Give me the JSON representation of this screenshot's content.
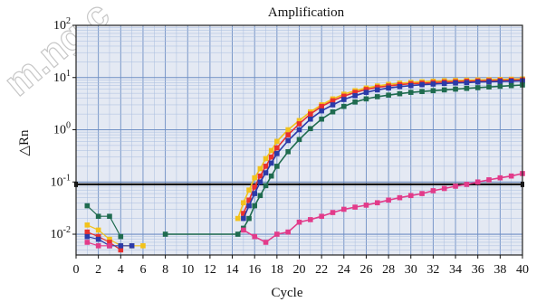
{
  "chart_data": {
    "type": "line",
    "title": "Amplification",
    "xlabel": "Cycle",
    "ylabel": "△Rn",
    "y_scale": "log",
    "xlim": [
      0,
      40
    ],
    "ylim": [
      0.004,
      100
    ],
    "grid": true,
    "x_ticks": [
      "0",
      "2",
      "4",
      "6",
      "8",
      "10",
      "12",
      "14",
      "16",
      "18",
      "20",
      "22",
      "24",
      "26",
      "28",
      "30",
      "32",
      "34",
      "36",
      "38",
      "40"
    ],
    "y_ticks": [
      {
        "value": 100,
        "base": "10",
        "exp": "2"
      },
      {
        "value": 10,
        "base": "10",
        "exp": "1"
      },
      {
        "value": 1,
        "base": "10",
        "exp": "0"
      },
      {
        "value": 0.1,
        "base": "10",
        "exp": "-1"
      },
      {
        "value": 0.01,
        "base": "10",
        "exp": "-2"
      }
    ],
    "threshold": 0.09,
    "watermark": "m.ng.c",
    "colors": {
      "background": "#e4e9f3",
      "grid_major": "#6f8fc4",
      "grid_minor": "#a9bddf",
      "frame": "#222222"
    },
    "series": [
      {
        "color": "#f2c21b",
        "marker": "square",
        "early": [
          [
            1,
            0.015
          ],
          [
            2,
            0.012
          ],
          [
            3,
            0.008
          ],
          [
            4,
            0.006
          ],
          [
            5,
            0.006
          ],
          [
            6,
            0.006
          ]
        ],
        "points": [
          [
            14.5,
            0.02
          ],
          [
            15,
            0.04
          ],
          [
            15.5,
            0.07
          ],
          [
            16,
            0.12
          ],
          [
            16.5,
            0.18
          ],
          [
            17,
            0.28
          ],
          [
            17.5,
            0.4
          ],
          [
            18,
            0.6
          ],
          [
            19,
            1.0
          ],
          [
            20,
            1.5
          ],
          [
            21,
            2.2
          ],
          [
            22,
            3.0
          ],
          [
            23,
            3.9
          ],
          [
            24,
            4.8
          ],
          [
            25,
            5.6
          ],
          [
            26,
            6.3
          ],
          [
            27,
            6.9
          ],
          [
            28,
            7.4
          ],
          [
            29,
            7.8
          ],
          [
            30,
            8.1
          ],
          [
            31,
            8.3
          ],
          [
            32,
            8.5
          ],
          [
            33,
            8.7
          ],
          [
            34,
            8.8
          ],
          [
            35,
            8.9
          ],
          [
            36,
            9.0
          ],
          [
            37,
            9.1
          ],
          [
            38,
            9.2
          ],
          [
            39,
            9.3
          ],
          [
            40,
            9.4
          ]
        ]
      },
      {
        "color": "#e8302f",
        "marker": "square",
        "early": [
          [
            1,
            0.011
          ],
          [
            2,
            0.009
          ],
          [
            3,
            0.007
          ],
          [
            4,
            0.005
          ]
        ],
        "points": [
          [
            15,
            0.025
          ],
          [
            15.5,
            0.045
          ],
          [
            16,
            0.08
          ],
          [
            16.5,
            0.13
          ],
          [
            17,
            0.2
          ],
          [
            17.5,
            0.3
          ],
          [
            18,
            0.45
          ],
          [
            19,
            0.8
          ],
          [
            20,
            1.3
          ],
          [
            21,
            2.0
          ],
          [
            22,
            2.8
          ],
          [
            23,
            3.6
          ],
          [
            24,
            4.4
          ],
          [
            25,
            5.2
          ],
          [
            26,
            5.9
          ],
          [
            27,
            6.5
          ],
          [
            28,
            6.9
          ],
          [
            29,
            7.3
          ],
          [
            30,
            7.6
          ],
          [
            31,
            7.8
          ],
          [
            32,
            8.0
          ],
          [
            33,
            8.2
          ],
          [
            34,
            8.3
          ],
          [
            35,
            8.5
          ],
          [
            36,
            8.6
          ],
          [
            37,
            8.7
          ],
          [
            38,
            8.8
          ],
          [
            39,
            8.9
          ],
          [
            40,
            9.0
          ]
        ]
      },
      {
        "color": "#2b3aa8",
        "marker": "square",
        "early": [
          [
            1,
            0.009
          ],
          [
            2,
            0.008
          ],
          [
            3,
            0.006
          ],
          [
            4,
            0.006
          ],
          [
            5,
            0.006
          ]
        ],
        "points": [
          [
            15,
            0.02
          ],
          [
            15.5,
            0.035
          ],
          [
            16,
            0.06
          ],
          [
            16.5,
            0.1
          ],
          [
            17,
            0.15
          ],
          [
            17.5,
            0.23
          ],
          [
            18,
            0.35
          ],
          [
            19,
            0.62
          ],
          [
            20,
            1.0
          ],
          [
            21,
            1.6
          ],
          [
            22,
            2.3
          ],
          [
            23,
            3.0
          ],
          [
            24,
            3.8
          ],
          [
            25,
            4.5
          ],
          [
            26,
            5.2
          ],
          [
            27,
            5.8
          ],
          [
            28,
            6.3
          ],
          [
            29,
            6.7
          ],
          [
            30,
            7.0
          ],
          [
            31,
            7.3
          ],
          [
            32,
            7.5
          ],
          [
            33,
            7.7
          ],
          [
            34,
            7.9
          ],
          [
            35,
            8.0
          ],
          [
            36,
            8.2
          ],
          [
            37,
            8.3
          ],
          [
            38,
            8.4
          ],
          [
            39,
            8.5
          ],
          [
            40,
            8.6
          ]
        ]
      },
      {
        "color": "#1f6b4f",
        "marker": "square",
        "early": [
          [
            1,
            0.035
          ],
          [
            2,
            0.022
          ],
          [
            3,
            0.022
          ],
          [
            4,
            0.009
          ]
        ],
        "points": [
          [
            8,
            0.01
          ],
          [
            14.5,
            0.01
          ],
          [
            15,
            0.013
          ],
          [
            15.5,
            0.02
          ],
          [
            16,
            0.035
          ],
          [
            16.5,
            0.055
          ],
          [
            17,
            0.085
          ],
          [
            17.5,
            0.13
          ],
          [
            18,
            0.2
          ],
          [
            19,
            0.38
          ],
          [
            20,
            0.65
          ],
          [
            21,
            1.05
          ],
          [
            22,
            1.6
          ],
          [
            23,
            2.2
          ],
          [
            24,
            2.8
          ],
          [
            25,
            3.4
          ],
          [
            26,
            3.9
          ],
          [
            27,
            4.3
          ],
          [
            28,
            4.6
          ],
          [
            29,
            4.9
          ],
          [
            30,
            5.2
          ],
          [
            31,
            5.4
          ],
          [
            32,
            5.6
          ],
          [
            33,
            5.8
          ],
          [
            34,
            6.0
          ],
          [
            35,
            6.2
          ],
          [
            36,
            6.4
          ],
          [
            37,
            6.6
          ],
          [
            38,
            6.8
          ],
          [
            39,
            7.0
          ],
          [
            40,
            7.2
          ]
        ]
      },
      {
        "color": "#e23b8a",
        "marker": "square",
        "early": [
          [
            1,
            0.007
          ],
          [
            2,
            0.006
          ],
          [
            3,
            0.006
          ]
        ],
        "points": [
          [
            15,
            0.012
          ],
          [
            16,
            0.009
          ],
          [
            17,
            0.007
          ],
          [
            18,
            0.01
          ],
          [
            19,
            0.011
          ],
          [
            20,
            0.017
          ],
          [
            21,
            0.019
          ],
          [
            22,
            0.022
          ],
          [
            23,
            0.026
          ],
          [
            24,
            0.03
          ],
          [
            25,
            0.033
          ],
          [
            26,
            0.036
          ],
          [
            27,
            0.04
          ],
          [
            28,
            0.045
          ],
          [
            29,
            0.05
          ],
          [
            30,
            0.055
          ],
          [
            31,
            0.06
          ],
          [
            32,
            0.068
          ],
          [
            33,
            0.075
          ],
          [
            34,
            0.083
          ],
          [
            35,
            0.09
          ],
          [
            36,
            0.1
          ],
          [
            37,
            0.11
          ],
          [
            38,
            0.12
          ],
          [
            39,
            0.13
          ],
          [
            40,
            0.145
          ]
        ]
      }
    ]
  }
}
